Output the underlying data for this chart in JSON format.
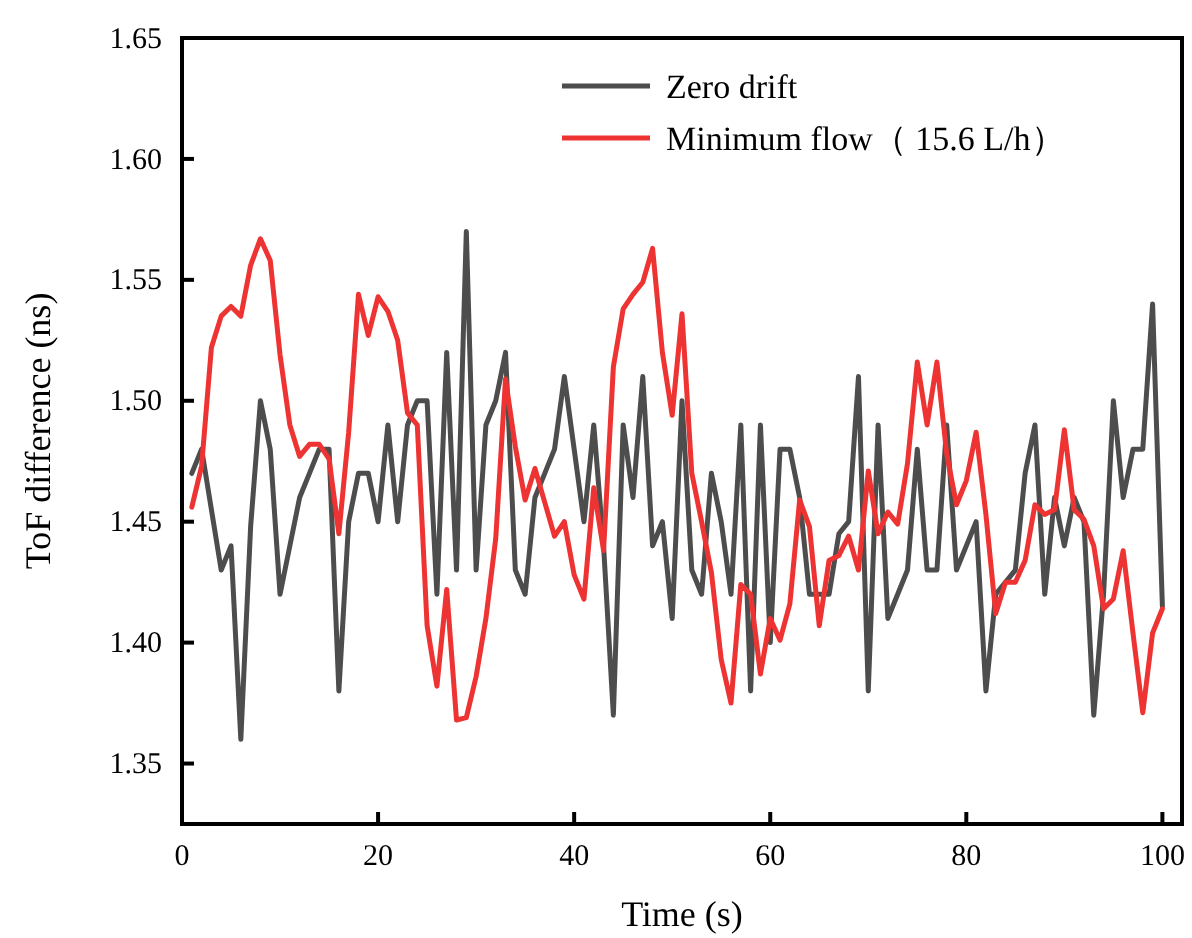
{
  "chart_data": {
    "type": "line",
    "xlabel": "Time (s)",
    "ylabel": "ToF difference (ns)",
    "x": [
      1,
      2,
      3,
      4,
      5,
      6,
      7,
      8,
      9,
      10,
      11,
      12,
      13,
      14,
      15,
      16,
      17,
      18,
      19,
      20,
      21,
      22,
      23,
      24,
      25,
      26,
      27,
      28,
      29,
      30,
      31,
      32,
      33,
      34,
      35,
      36,
      37,
      38,
      39,
      40,
      41,
      42,
      43,
      44,
      45,
      46,
      47,
      48,
      49,
      50,
      51,
      52,
      53,
      54,
      55,
      56,
      57,
      58,
      59,
      60,
      61,
      62,
      63,
      64,
      65,
      66,
      67,
      68,
      69,
      70,
      71,
      72,
      73,
      74,
      75,
      76,
      77,
      78,
      79,
      80,
      81,
      82,
      83,
      84,
      85,
      86,
      87,
      88,
      89,
      90,
      91,
      92,
      93,
      94,
      95,
      96,
      97,
      98,
      99,
      100
    ],
    "series": [
      {
        "name": "Zero drift",
        "color": "#4d4d4d",
        "values": [
          1.47,
          1.48,
          1.455,
          1.43,
          1.44,
          1.36,
          1.448,
          1.5,
          1.48,
          1.42,
          1.44,
          1.46,
          1.47,
          1.48,
          1.48,
          1.38,
          1.45,
          1.47,
          1.47,
          1.45,
          1.49,
          1.45,
          1.49,
          1.5,
          1.5,
          1.42,
          1.52,
          1.43,
          1.57,
          1.43,
          1.49,
          1.5,
          1.52,
          1.43,
          1.42,
          1.46,
          1.47,
          1.48,
          1.51,
          1.48,
          1.45,
          1.49,
          1.44,
          1.37,
          1.49,
          1.46,
          1.51,
          1.44,
          1.45,
          1.41,
          1.5,
          1.43,
          1.42,
          1.47,
          1.45,
          1.42,
          1.49,
          1.38,
          1.49,
          1.4,
          1.48,
          1.48,
          1.46,
          1.42,
          1.42,
          1.42,
          1.445,
          1.45,
          1.51,
          1.38,
          1.49,
          1.41,
          1.42,
          1.43,
          1.48,
          1.43,
          1.43,
          1.49,
          1.43,
          1.44,
          1.45,
          1.38,
          1.42,
          1.425,
          1.43,
          1.47,
          1.49,
          1.42,
          1.46,
          1.44,
          1.46,
          1.45,
          1.37,
          1.42,
          1.5,
          1.46,
          1.48,
          1.48,
          1.54,
          1.415
        ]
      },
      {
        "name": "Minimum flow（ 15.6 L/h）",
        "color": "#ee3333",
        "values": [
          1.456,
          1.473,
          1.522,
          1.535,
          1.539,
          1.535,
          1.556,
          1.567,
          1.558,
          1.519,
          1.49,
          1.477,
          1.482,
          1.482,
          1.476,
          1.445,
          1.487,
          1.544,
          1.527,
          1.543,
          1.537,
          1.525,
          1.495,
          1.49,
          1.407,
          1.382,
          1.422,
          1.368,
          1.369,
          1.386,
          1.41,
          1.443,
          1.509,
          1.481,
          1.459,
          1.472,
          1.458,
          1.444,
          1.45,
          1.428,
          1.418,
          1.464,
          1.438,
          1.514,
          1.538,
          1.544,
          1.549,
          1.563,
          1.52,
          1.494,
          1.536,
          1.47,
          1.45,
          1.429,
          1.393,
          1.375,
          1.424,
          1.42,
          1.387,
          1.41,
          1.401,
          1.416,
          1.459,
          1.448,
          1.407,
          1.434,
          1.436,
          1.444,
          1.43,
          1.471,
          1.445,
          1.454,
          1.449,
          1.474,
          1.516,
          1.49,
          1.516,
          1.478,
          1.457,
          1.467,
          1.487,
          1.453,
          1.412,
          1.425,
          1.425,
          1.434,
          1.457,
          1.453,
          1.455,
          1.488,
          1.455,
          1.451,
          1.44,
          1.414,
          1.418,
          1.438,
          1.404,
          1.371,
          1.404,
          1.414
        ]
      }
    ],
    "xlim": [
      0,
      102
    ],
    "xticks": [
      0,
      20,
      40,
      60,
      80,
      100
    ],
    "ylim": [
      1.325,
      1.65
    ],
    "yticks": [
      1.35,
      {
        "value": 1.4,
        "label": "1.40"
      },
      1.45,
      {
        "value": 1.5,
        "label": "1.50"
      },
      1.55,
      {
        "value": 1.6,
        "label": "1.60"
      },
      1.65
    ],
    "legend": "top right",
    "grid": false,
    "marker": "none",
    "line_style": "solid"
  }
}
